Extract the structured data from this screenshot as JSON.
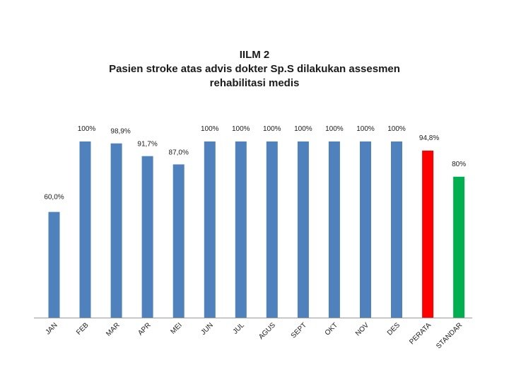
{
  "chart_data": {
    "type": "bar",
    "title": [
      "IILM 2",
      "Pasien stroke atas advis dokter Sp.S dilakukan assesmen",
      "rehabilitasi medis"
    ],
    "categories": [
      "JAN",
      "FEB",
      "MAR",
      "APR",
      "MEI",
      "JUN",
      "JUL",
      "AGUS",
      "SEPT",
      "OKT",
      "NOV",
      "DES",
      "PERATA",
      "STANDAR"
    ],
    "values": [
      60.0,
      100,
      98.9,
      91.7,
      87.0,
      100,
      100,
      100,
      100,
      100,
      100,
      100,
      94.8,
      80
    ],
    "value_labels": [
      "60,0%",
      "100%",
      "98,9%",
      "91,7%",
      "87,0%",
      "100%",
      "100%",
      "100%",
      "100%",
      "100%",
      "100%",
      "100%",
      "94,8%",
      "80%"
    ],
    "bar_colors": [
      "#4f81bd",
      "#4f81bd",
      "#4f81bd",
      "#4f81bd",
      "#4f81bd",
      "#4f81bd",
      "#4f81bd",
      "#4f81bd",
      "#4f81bd",
      "#4f81bd",
      "#4f81bd",
      "#4f81bd",
      "#ff0000",
      "#00b050"
    ],
    "ylim": [
      0,
      100
    ],
    "xlabel": "",
    "ylabel": "",
    "grid": false,
    "legend": false
  }
}
